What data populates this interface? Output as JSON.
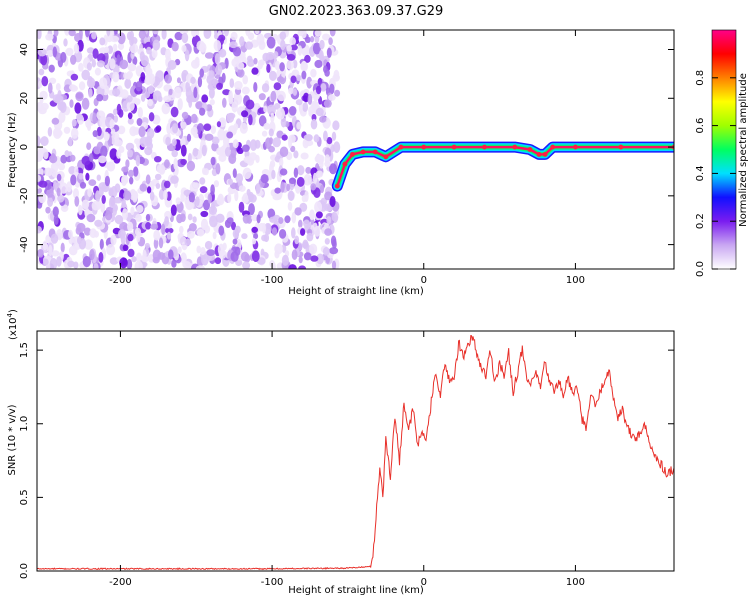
{
  "title": "GN02.2023.363.09.37.G29",
  "chart_data": [
    {
      "type": "heatmap",
      "xlabel": "Height of straight line (km)",
      "ylabel": "Frequency (Hz)",
      "xlim": [
        -255,
        165
      ],
      "ylim": [
        -50,
        48
      ],
      "xticks": [
        -200,
        -100,
        0,
        100
      ],
      "xtick_labels": [
        "-200",
        "-100",
        "0",
        "100"
      ],
      "yticks": [
        -40,
        -20,
        0,
        20,
        40
      ],
      "ytick_labels": [
        "-40",
        "-20",
        "0",
        "20",
        "40"
      ],
      "noise_region_x": [
        -255,
        -57
      ],
      "ridge": {
        "name": "",
        "x": [
          -57,
          -52,
          -47,
          -40,
          -32,
          -25,
          -15,
          0,
          20,
          40,
          60,
          70,
          76,
          80,
          85,
          100,
          130,
          165
        ],
        "y": [
          -16,
          -7,
          -3,
          -2,
          -2,
          -4,
          0,
          0,
          0,
          0,
          0,
          -1,
          -3,
          -3,
          0,
          0,
          0,
          0
        ]
      },
      "colorbar": {
        "label": "Normalized spectral amplitude",
        "range": [
          0.0,
          1.0
        ],
        "ticks": [
          0.0,
          0.2,
          0.4,
          0.6,
          0.8
        ],
        "tick_labels": [
          "0.0",
          "0.2",
          "0.4",
          "0.6",
          "0.8"
        ],
        "colors": [
          "#ffffff",
          "#c9a7f2",
          "#7a1cf0",
          "#1010ff",
          "#00e0ff",
          "#00ff60",
          "#a0ff00",
          "#ffff00",
          "#ff8000",
          "#ff0000",
          "#ff0088"
        ]
      }
    },
    {
      "type": "line",
      "xlabel": "Height of straight line (km)",
      "ylabel": "SNR (10 * v/v)",
      "yscale_label": "(x10",
      "yscale_exp": "4",
      "yscale_close": ")",
      "xlim": [
        -255,
        165
      ],
      "ylim": [
        0,
        1.63
      ],
      "xticks": [
        -200,
        -100,
        0,
        100
      ],
      "xtick_labels": [
        "-200",
        "-100",
        "0",
        "100"
      ],
      "yticks": [
        0.0,
        0.5,
        1.0,
        1.5
      ],
      "ytick_labels": [
        "0.0",
        "0.5",
        "1.0",
        "1.5"
      ],
      "series": [
        {
          "name": "",
          "color": "#e8302a",
          "x": [
            -255,
            -200,
            -150,
            -100,
            -50,
            -35,
            -33,
            -31,
            -29,
            -27,
            -25,
            -22,
            -19,
            -16,
            -13,
            -10,
            -7,
            -4,
            -1,
            2,
            5,
            8,
            11,
            14,
            17,
            20,
            23,
            26,
            29,
            32,
            35,
            38,
            41,
            44,
            47,
            50,
            53,
            56,
            59,
            62,
            65,
            68,
            71,
            74,
            77,
            80,
            83,
            86,
            89,
            92,
            95,
            98,
            101,
            104,
            107,
            110,
            113,
            116,
            119,
            122,
            125,
            128,
            131,
            134,
            137,
            140,
            143,
            146,
            149,
            152,
            155,
            158,
            161,
            165
          ],
          "y": [
            0.015,
            0.015,
            0.015,
            0.015,
            0.02,
            0.03,
            0.15,
            0.45,
            0.7,
            0.5,
            0.9,
            0.65,
            1.05,
            0.75,
            1.15,
            0.95,
            1.1,
            0.85,
            0.95,
            0.9,
            1.15,
            1.35,
            1.2,
            1.4,
            1.3,
            1.3,
            1.55,
            1.45,
            1.52,
            1.6,
            1.48,
            1.38,
            1.33,
            1.5,
            1.28,
            1.42,
            1.32,
            1.48,
            1.22,
            1.36,
            1.5,
            1.3,
            1.26,
            1.35,
            1.24,
            1.42,
            1.28,
            1.22,
            1.3,
            1.18,
            1.32,
            1.2,
            1.25,
            1.05,
            0.95,
            1.2,
            1.12,
            1.2,
            1.3,
            1.36,
            1.18,
            1.05,
            1.1,
            0.98,
            0.92,
            0.9,
            0.95,
            0.98,
            0.85,
            0.8,
            0.75,
            0.7,
            0.66,
            0.7
          ]
        }
      ]
    }
  ]
}
